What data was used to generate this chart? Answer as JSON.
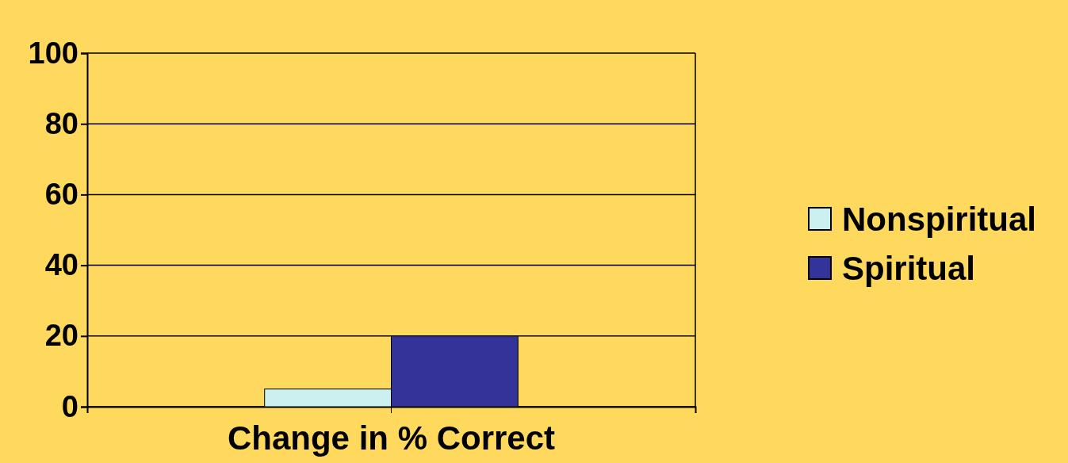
{
  "chart_data": {
    "type": "bar",
    "categories": [
      "Change in % Correct"
    ],
    "series": [
      {
        "name": "Nonspiritual",
        "color": "#ccf0f0",
        "values": [
          5
        ]
      },
      {
        "name": "Spiritual",
        "color": "#333399",
        "values": [
          20
        ]
      }
    ],
    "ylim": [
      0,
      100
    ],
    "yticks": [
      0,
      20,
      40,
      60,
      80,
      100
    ],
    "grid": "y",
    "legend": "right"
  }
}
